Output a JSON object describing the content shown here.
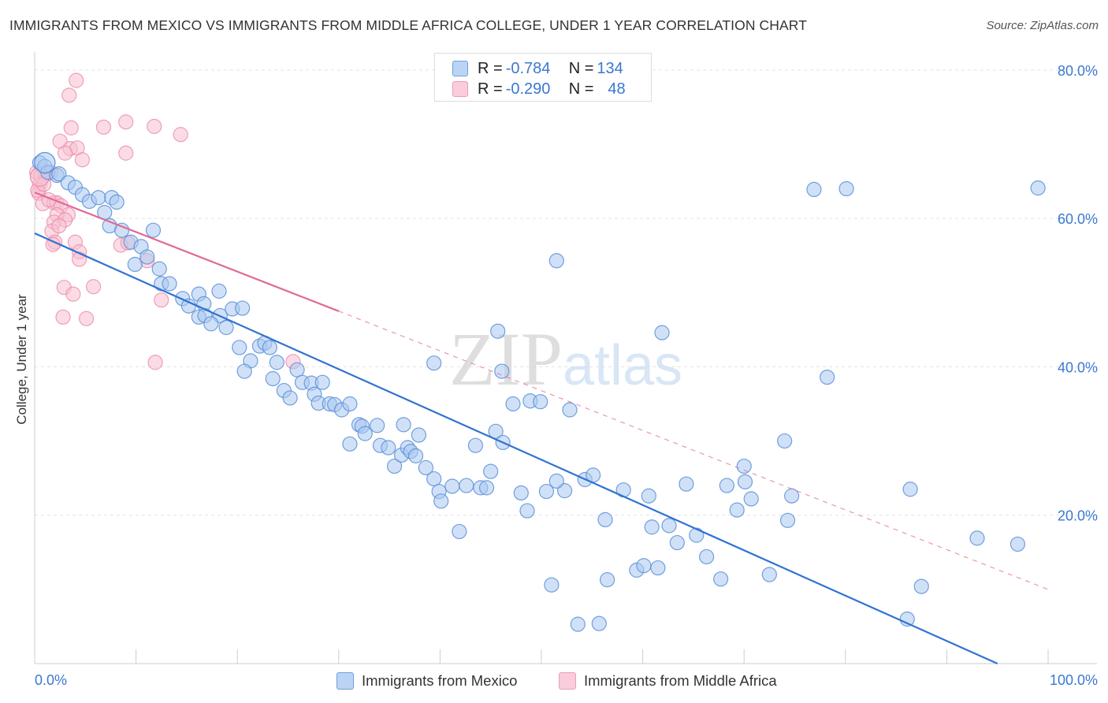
{
  "title": "IMMIGRANTS FROM MEXICO VS IMMIGRANTS FROM MIDDLE AFRICA COLLEGE, UNDER 1 YEAR CORRELATION CHART",
  "source": "Source: ZipAtlas.com",
  "watermark": "ZIPatlas",
  "colors": {
    "mexico_fill": "#a9c8f0",
    "mexico_stroke": "#5a8fd8",
    "mexico_line": "#2f73d0",
    "africa_fill": "#f7bfd0",
    "africa_stroke": "#ec8fae",
    "africa_line": "#e06a96",
    "tick_label": "#3a78d0",
    "grid": "#e3e3e3"
  },
  "legend": {
    "rows": [
      {
        "r_label": "R = ",
        "r_value": "-0.784",
        "n_label": "N = ",
        "n_value": "134"
      },
      {
        "r_label": "R = ",
        "r_value": "-0.290",
        "n_label": "N = ",
        "n_value": "48"
      }
    ]
  },
  "bottom_legend": [
    "Immigrants from Mexico",
    "Immigrants from Middle Africa"
  ],
  "chart_data": {
    "type": "scatter",
    "xlabel": "",
    "ylabel": "College, Under 1 year",
    "xlim": [
      0,
      100
    ],
    "ylim": [
      0,
      82
    ],
    "x_tick_labels": [
      "0.0%",
      "100.0%"
    ],
    "y_tick_labels": [
      "20.0%",
      "40.0%",
      "60.0%",
      "80.0%"
    ],
    "y_ticks": [
      20,
      40,
      60,
      80
    ],
    "grid": "horizontal dashed",
    "series": [
      {
        "name": "Immigrants from Mexico",
        "trend": {
          "x0": 0,
          "y0": 58,
          "x1": 95,
          "y1": 0
        },
        "points": [
          [
            0.5,
            67.5
          ],
          [
            1.0,
            67.0
          ],
          [
            1.3,
            66.2
          ],
          [
            2.2,
            65.8
          ],
          [
            2.4,
            66.0
          ],
          [
            3.3,
            64.8
          ],
          [
            4.0,
            64.2
          ],
          [
            4.7,
            63.2
          ],
          [
            5.4,
            62.3
          ],
          [
            6.3,
            62.8
          ],
          [
            7.6,
            62.8
          ],
          [
            8.1,
            62.2
          ],
          [
            6.9,
            60.8
          ],
          [
            7.4,
            59.0
          ],
          [
            8.6,
            58.4
          ],
          [
            11.7,
            58.4
          ],
          [
            9.5,
            56.8
          ],
          [
            10.5,
            56.2
          ],
          [
            11.1,
            54.8
          ],
          [
            12.3,
            53.2
          ],
          [
            9.9,
            53.8
          ],
          [
            12.5,
            51.2
          ],
          [
            13.3,
            51.2
          ],
          [
            14.6,
            49.2
          ],
          [
            15.2,
            48.2
          ],
          [
            16.2,
            49.8
          ],
          [
            16.7,
            48.5
          ],
          [
            18.2,
            50.2
          ],
          [
            16.2,
            46.7
          ],
          [
            16.8,
            46.9
          ],
          [
            18.3,
            46.9
          ],
          [
            19.5,
            47.8
          ],
          [
            20.5,
            47.9
          ],
          [
            17.4,
            45.8
          ],
          [
            18.9,
            45.3
          ],
          [
            20.2,
            42.6
          ],
          [
            21.3,
            40.8
          ],
          [
            22.2,
            42.8
          ],
          [
            22.7,
            43.2
          ],
          [
            23.2,
            42.6
          ],
          [
            23.9,
            40.6
          ],
          [
            20.7,
            39.4
          ],
          [
            23.5,
            38.4
          ],
          [
            24.6,
            36.8
          ],
          [
            25.2,
            35.8
          ],
          [
            25.9,
            39.6
          ],
          [
            26.4,
            37.9
          ],
          [
            27.3,
            37.8
          ],
          [
            27.6,
            36.3
          ],
          [
            28.0,
            35.1
          ],
          [
            28.4,
            37.9
          ],
          [
            29.1,
            35.0
          ],
          [
            29.6,
            34.9
          ],
          [
            30.3,
            34.2
          ],
          [
            31.1,
            35.0
          ],
          [
            32.0,
            32.2
          ],
          [
            32.3,
            32.0
          ],
          [
            31.1,
            29.6
          ],
          [
            32.6,
            31.0
          ],
          [
            33.8,
            32.1
          ],
          [
            34.1,
            29.4
          ],
          [
            34.9,
            29.1
          ],
          [
            35.5,
            26.6
          ],
          [
            36.2,
            28.1
          ],
          [
            36.4,
            32.2
          ],
          [
            36.8,
            29.1
          ],
          [
            37.9,
            30.8
          ],
          [
            37.1,
            28.6
          ],
          [
            37.6,
            28.0
          ],
          [
            39.4,
            40.5
          ],
          [
            38.6,
            26.4
          ],
          [
            39.4,
            24.9
          ],
          [
            39.9,
            23.2
          ],
          [
            40.1,
            21.9
          ],
          [
            41.2,
            23.9
          ],
          [
            41.9,
            17.8
          ],
          [
            42.6,
            24.0
          ],
          [
            43.5,
            29.4
          ],
          [
            44.0,
            23.7
          ],
          [
            44.6,
            23.7
          ],
          [
            45.0,
            25.9
          ],
          [
            45.5,
            31.3
          ],
          [
            46.1,
            39.4
          ],
          [
            46.2,
            29.8
          ],
          [
            47.2,
            35.0
          ],
          [
            48.0,
            23.0
          ],
          [
            48.6,
            20.6
          ],
          [
            45.7,
            44.8
          ],
          [
            48.9,
            35.4
          ],
          [
            49.9,
            35.3
          ],
          [
            50.5,
            23.2
          ],
          [
            51.0,
            10.6
          ],
          [
            51.5,
            54.3
          ],
          [
            52.3,
            23.3
          ],
          [
            52.8,
            34.2
          ],
          [
            53.6,
            5.3
          ],
          [
            54.3,
            24.8
          ],
          [
            55.1,
            25.4
          ],
          [
            55.7,
            5.4
          ],
          [
            51.5,
            24.6
          ],
          [
            56.3,
            19.4
          ],
          [
            56.5,
            11.3
          ],
          [
            58.1,
            23.4
          ],
          [
            59.4,
            12.6
          ],
          [
            60.1,
            13.2
          ],
          [
            60.6,
            22.6
          ],
          [
            60.9,
            18.4
          ],
          [
            61.5,
            12.9
          ],
          [
            61.9,
            44.6
          ],
          [
            62.6,
            18.6
          ],
          [
            63.4,
            16.3
          ],
          [
            64.3,
            24.2
          ],
          [
            65.3,
            17.3
          ],
          [
            66.3,
            14.4
          ],
          [
            67.7,
            11.4
          ],
          [
            68.3,
            24.0
          ],
          [
            69.3,
            20.7
          ],
          [
            70.0,
            26.6
          ],
          [
            70.1,
            24.5
          ],
          [
            70.7,
            22.2
          ],
          [
            72.5,
            12.0
          ],
          [
            74.0,
            30.0
          ],
          [
            74.3,
            19.3
          ],
          [
            74.7,
            22.6
          ],
          [
            76.9,
            63.9
          ],
          [
            78.2,
            38.6
          ],
          [
            80.1,
            64.0
          ],
          [
            86.4,
            23.5
          ],
          [
            86.1,
            6.0
          ],
          [
            87.5,
            10.4
          ],
          [
            93.0,
            16.9
          ],
          [
            97.0,
            16.1
          ],
          [
            99.0,
            64.1
          ]
        ]
      },
      {
        "name": "Immigrants from Middle Africa",
        "trend": {
          "x0": 0,
          "y0": 63.5,
          "x1": 30,
          "y1": 47.5,
          "dash_to_x": 100,
          "dash_to_y": 10
        },
        "points": [
          [
            4.1,
            78.6
          ],
          [
            3.4,
            76.6
          ],
          [
            6.8,
            72.3
          ],
          [
            9.0,
            73.0
          ],
          [
            11.8,
            72.4
          ],
          [
            14.4,
            71.3
          ],
          [
            3.6,
            72.2
          ],
          [
            2.5,
            70.4
          ],
          [
            3.5,
            69.4
          ],
          [
            4.2,
            69.5
          ],
          [
            3.0,
            68.8
          ],
          [
            4.7,
            67.9
          ],
          [
            9.0,
            68.8
          ],
          [
            0.2,
            66.2
          ],
          [
            0.6,
            65.7
          ],
          [
            1.1,
            65.9
          ],
          [
            1.6,
            66.2
          ],
          [
            0.5,
            64.6
          ],
          [
            0.4,
            63.4
          ],
          [
            0.8,
            62.0
          ],
          [
            1.9,
            62.1
          ],
          [
            2.2,
            62.1
          ],
          [
            2.6,
            61.7
          ],
          [
            3.3,
            60.5
          ],
          [
            2.2,
            60.5
          ],
          [
            1.9,
            59.5
          ],
          [
            3.0,
            59.8
          ],
          [
            1.7,
            58.3
          ],
          [
            2.4,
            59.0
          ],
          [
            2.0,
            56.8
          ],
          [
            1.8,
            56.5
          ],
          [
            4.0,
            56.8
          ],
          [
            8.5,
            56.4
          ],
          [
            9.2,
            56.7
          ],
          [
            4.4,
            55.5
          ],
          [
            4.4,
            54.5
          ],
          [
            11.1,
            54.3
          ],
          [
            2.9,
            50.7
          ],
          [
            5.8,
            50.8
          ],
          [
            3.8,
            49.8
          ],
          [
            12.5,
            49.0
          ],
          [
            2.8,
            46.7
          ],
          [
            5.1,
            46.5
          ],
          [
            11.9,
            40.6
          ],
          [
            25.5,
            40.7
          ],
          [
            0.3,
            63.8
          ],
          [
            0.9,
            64.6
          ],
          [
            1.4,
            62.5
          ]
        ]
      }
    ]
  }
}
